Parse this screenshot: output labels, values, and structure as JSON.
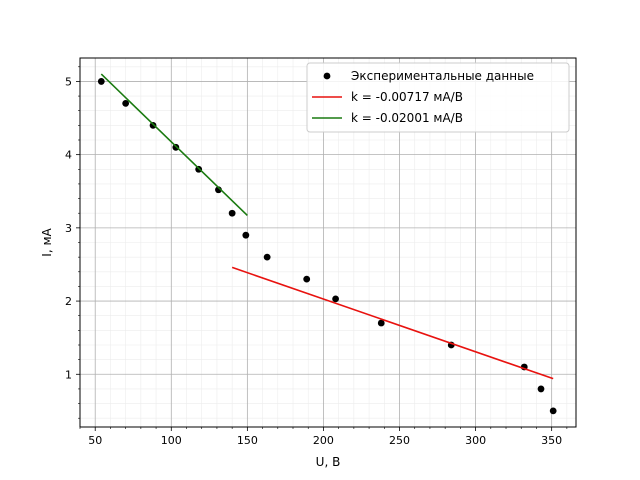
{
  "chart_data": {
    "type": "scatter",
    "xlabel": "U, В",
    "ylabel": "I, мА",
    "xlim": [
      40,
      366
    ],
    "ylim": [
      0.28,
      5.32
    ],
    "x_ticks": [
      50,
      100,
      150,
      200,
      250,
      300,
      350
    ],
    "y_ticks": [
      1,
      2,
      3,
      4,
      5
    ],
    "grid": true,
    "minor_grid": true,
    "legend_position": "top-right",
    "series": [
      {
        "name": "Экспериментальные данные",
        "kind": "scatter",
        "color": "#000000",
        "x": [
          54,
          70,
          88,
          103,
          118,
          131,
          140,
          149,
          163,
          189,
          208,
          238,
          284,
          332,
          343,
          351
        ],
        "y": [
          5.0,
          4.7,
          4.4,
          4.1,
          3.8,
          3.52,
          3.2,
          2.9,
          2.6,
          2.3,
          2.03,
          1.7,
          1.4,
          1.1,
          0.8,
          0.5
        ]
      },
      {
        "name": "k = -0.00717 мА/В",
        "kind": "line",
        "color": "#e8120f",
        "x": [
          140,
          351
        ],
        "y": [
          2.46,
          0.94
        ]
      },
      {
        "name": "k = -0.02001 мА/В",
        "kind": "line",
        "color": "#1a7a10",
        "x": [
          54,
          150
        ],
        "y": [
          5.1,
          3.17
        ]
      }
    ]
  }
}
